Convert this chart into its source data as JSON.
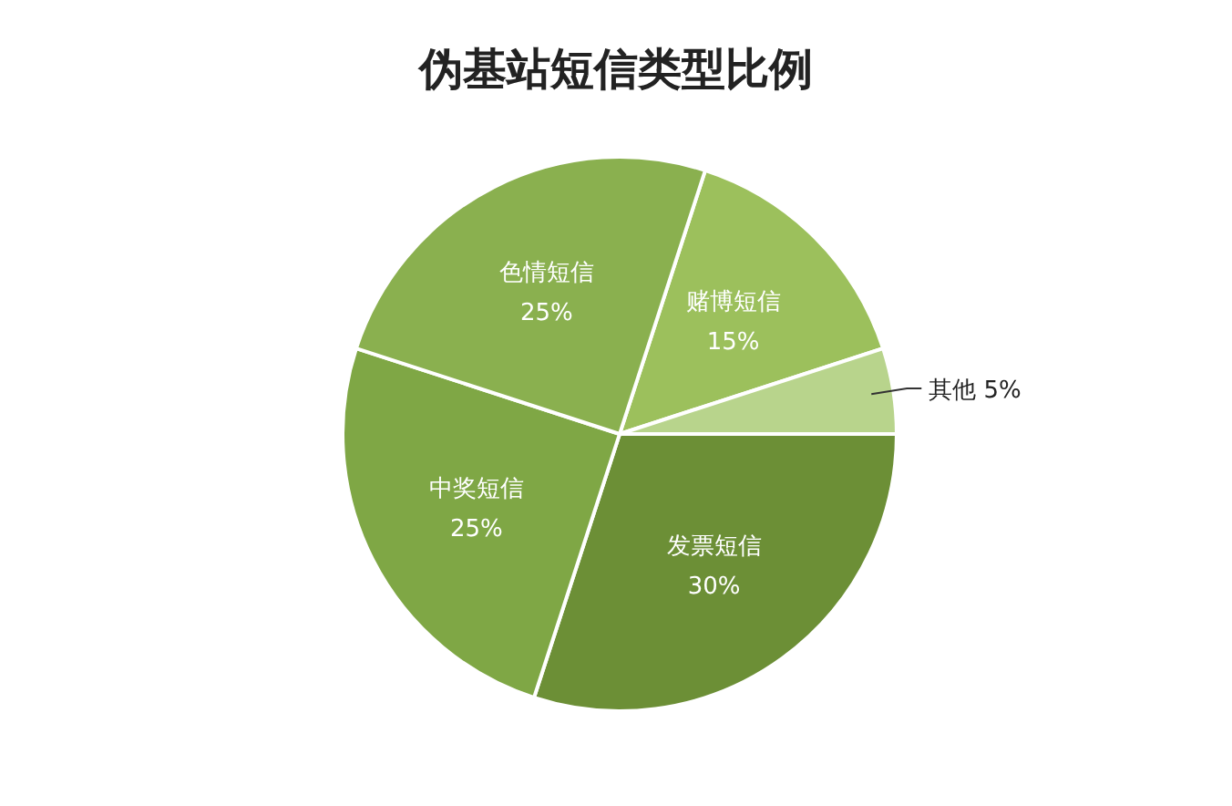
{
  "chart_data": {
    "type": "pie",
    "title": "伪基站短信类型比例",
    "categories": [
      "赌博短信",
      "其他",
      "发票短信",
      "中奖短信",
      "色情短信"
    ],
    "values": [
      15,
      5,
      30,
      25,
      25
    ],
    "value_labels": [
      "15%",
      "5%",
      "30%",
      "25%",
      "25%"
    ],
    "colors": [
      "#9cc05c",
      "#b8d48c",
      "#6c8f36",
      "#7fa745",
      "#8ab04f"
    ]
  }
}
